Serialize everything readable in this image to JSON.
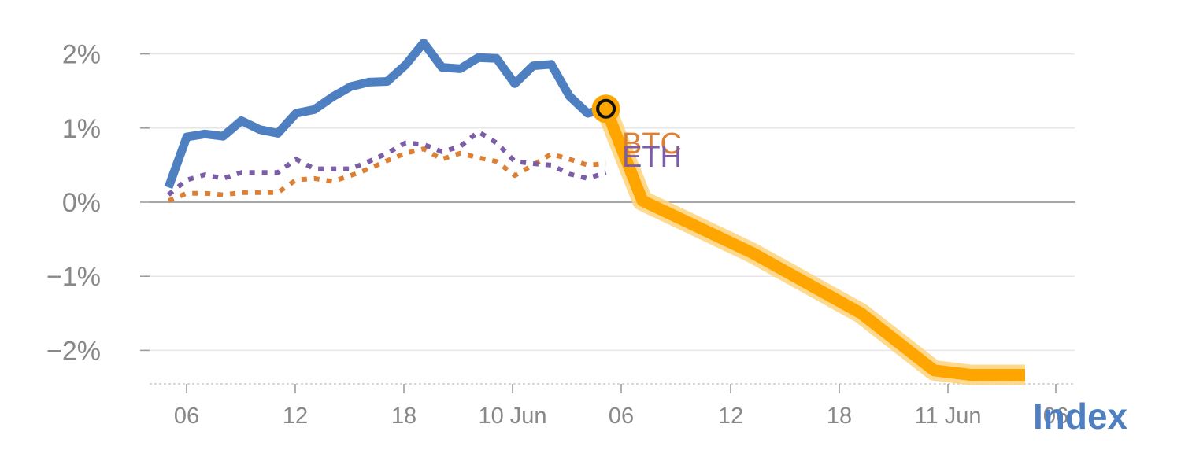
{
  "chart_data": {
    "type": "line",
    "y_tick_labels": [
      "2%",
      "1%",
      "0%",
      "−1%",
      "−2%"
    ],
    "y_tick_values": [
      2,
      1,
      0,
      -1,
      -2
    ],
    "x_tick_labels": [
      "06",
      "12",
      "18",
      "10 Jun",
      "06",
      "12",
      "18",
      "11 Jun",
      "06"
    ],
    "ylim": [
      -2.45,
      2.45
    ],
    "grid": true,
    "history": {
      "steps": 25,
      "series": [
        {
          "name": "Index",
          "color": "#4e7fc0",
          "style": "solid",
          "values": [
            0.2,
            0.88,
            0.92,
            0.89,
            1.1,
            0.98,
            0.93,
            1.2,
            1.25,
            1.42,
            1.56,
            1.62,
            1.63,
            1.85,
            2.15,
            1.82,
            1.8,
            1.95,
            1.94,
            1.6,
            1.84,
            1.86,
            1.43,
            1.2,
            1.26
          ]
        },
        {
          "name": "ETH",
          "color": "#7b5ea7",
          "style": "dotted",
          "values": [
            0.1,
            0.3,
            0.37,
            0.32,
            0.4,
            0.4,
            0.4,
            0.58,
            0.45,
            0.45,
            0.45,
            0.55,
            0.66,
            0.8,
            0.78,
            0.68,
            0.75,
            0.95,
            0.8,
            0.55,
            0.52,
            0.5,
            0.38,
            0.32,
            0.4
          ]
        },
        {
          "name": "BTC",
          "color": "#dd8033",
          "style": "dotted",
          "values": [
            0.02,
            0.12,
            0.12,
            0.1,
            0.13,
            0.13,
            0.13,
            0.3,
            0.32,
            0.28,
            0.36,
            0.45,
            0.56,
            0.66,
            0.72,
            0.58,
            0.66,
            0.6,
            0.55,
            0.36,
            0.5,
            0.65,
            0.58,
            0.5,
            0.52
          ]
        }
      ]
    },
    "forecast": {
      "color": "#ffa500",
      "start_step": 24,
      "values": [
        1.26,
        0.02,
        -0.68,
        -1.5,
        -2.27,
        -2.33,
        -2.33
      ],
      "steps": [
        24,
        26,
        32,
        38,
        42,
        44,
        47
      ]
    },
    "marker": {
      "step": 24,
      "value": 1.26
    },
    "end_labels": [
      {
        "text": "BTC",
        "color": "#dd8033"
      },
      {
        "text": "ETH",
        "color": "#7b5ea7"
      },
      {
        "text": "Index",
        "color": "#4e7fc0"
      }
    ]
  }
}
